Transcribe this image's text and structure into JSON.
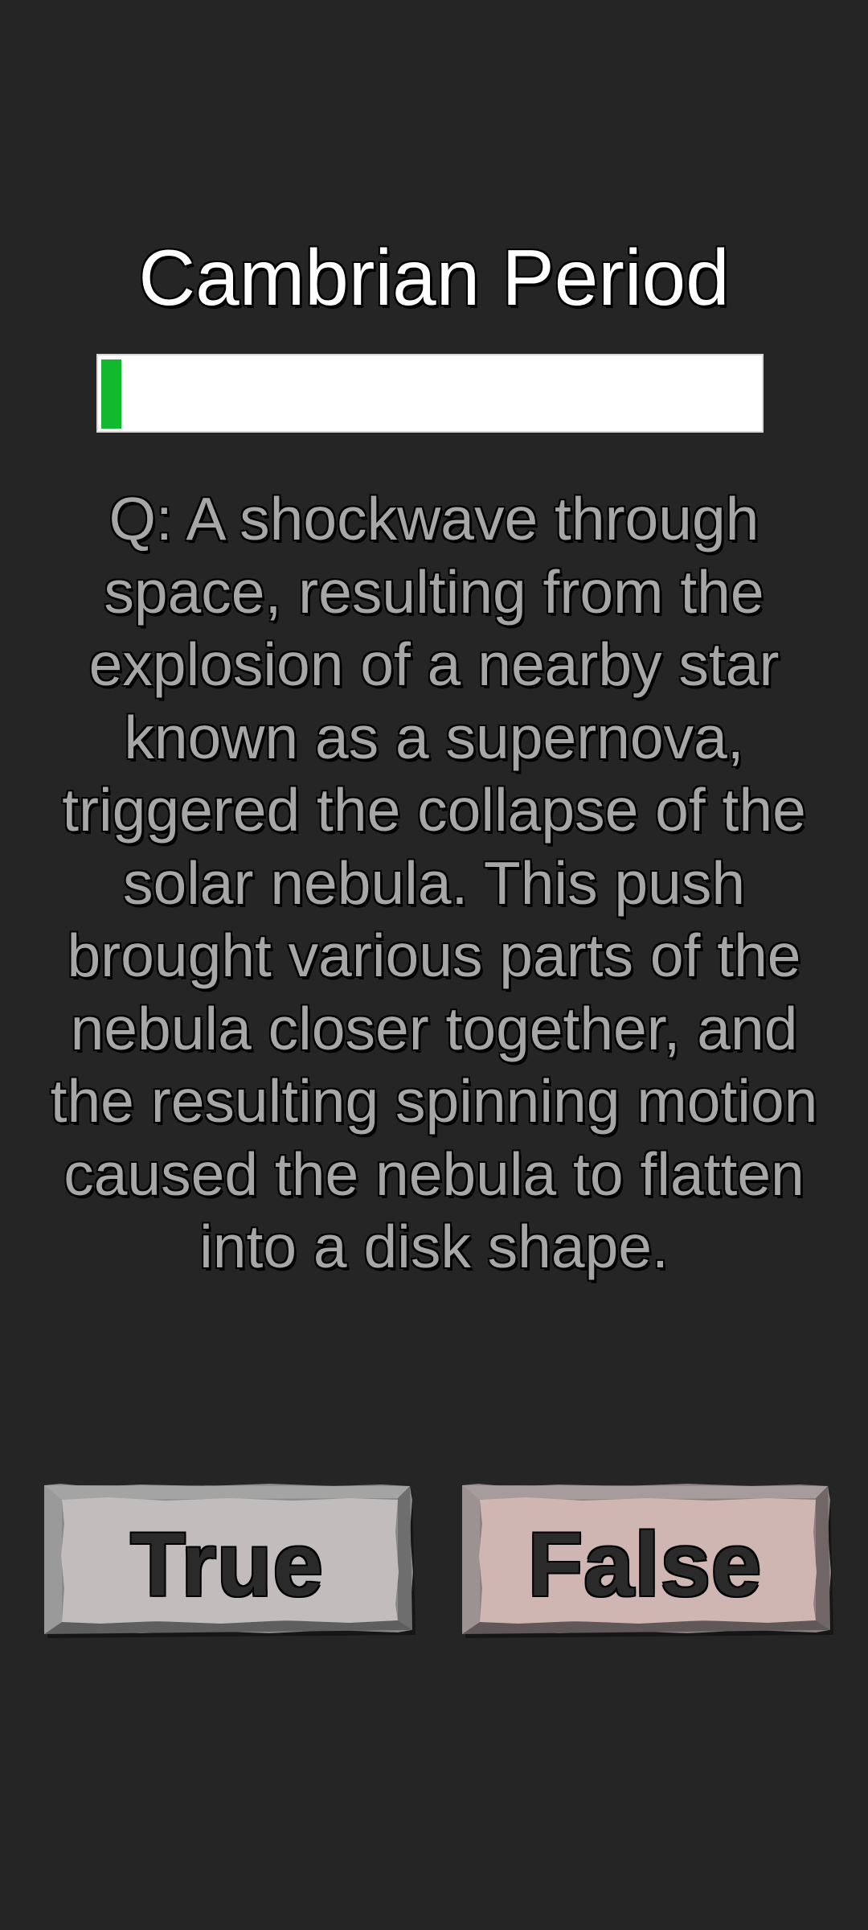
{
  "quiz": {
    "period_title": "Cambrian Period",
    "progress": 0.03,
    "progress_color": "#12b92e",
    "question": "Q: A shockwave through space, resulting from the explosion of a nearby star known as a supernova, triggered the collapse of the solar nebula. This push brought various parts of the nebula closer together, and the resulting spinning motion caused the nebula to flatten into a disk shape."
  },
  "answers": {
    "true_label": "True",
    "false_label": "False",
    "true_color": "#c2bcbc",
    "false_color": "#cfb6b3"
  }
}
